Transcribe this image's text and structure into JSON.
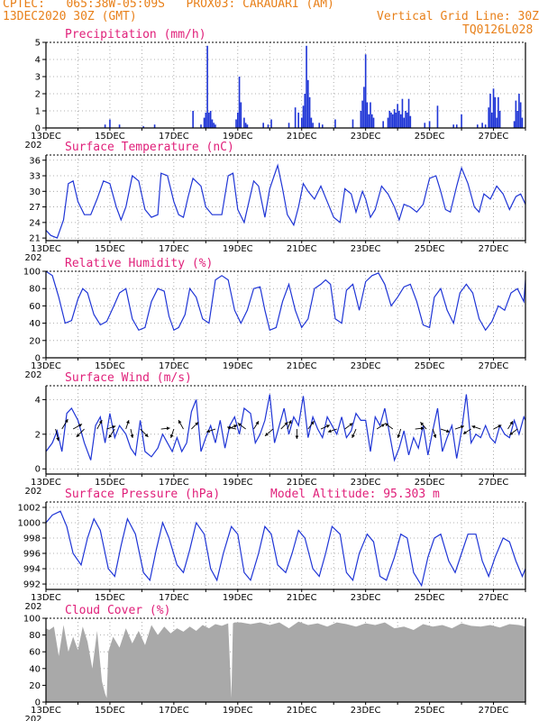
{
  "header": {
    "line1_left": "CPTEC:   065:38W-05:09S   PROX03: CARAUARI (AM)",
    "line2_left": "13DEC2020 30Z (GMT)",
    "line2_right": "Vertical Grid Line: 30Z",
    "line3_right": "TQ0126L028",
    "model_altitude": "Model Altitude: 95.303 m"
  },
  "colors": {
    "header": "#e8801a",
    "title": "#e0207a",
    "series": "#1f35d6",
    "cloud": "#a9a9a9",
    "grid": "#999999"
  },
  "x_axis": {
    "start_day": 13,
    "end_day": 28,
    "tick_labels": [
      "13DEC",
      "15DEC",
      "17DEC",
      "19DEC",
      "21DEC",
      "23DEC",
      "25DEC",
      "27DEC"
    ],
    "year_fragment": "202"
  },
  "chart_data": [
    {
      "type": "bar",
      "title": "Precipitation (mm/h)",
      "ylim": [
        0,
        5
      ],
      "yticks": [
        0,
        1,
        2,
        3,
        4,
        5
      ],
      "ytick_labels": [
        "0",
        "1",
        "2",
        "3",
        "4",
        "5"
      ],
      "x": [
        14.85,
        15.0,
        15.3,
        16.05,
        16.4,
        17.6,
        17.85,
        17.95,
        18.0,
        18.05,
        18.1,
        18.15,
        18.2,
        18.25,
        18.3,
        18.95,
        19.0,
        19.05,
        19.1,
        19.2,
        19.25,
        19.3,
        19.8,
        19.95,
        20.05,
        20.6,
        20.8,
        20.9,
        21.0,
        21.05,
        21.1,
        21.15,
        21.2,
        21.25,
        21.3,
        21.35,
        21.55,
        21.65,
        22.05,
        22.6,
        22.85,
        22.9,
        22.95,
        23.0,
        23.05,
        23.1,
        23.15,
        23.2,
        23.25,
        23.55,
        23.7,
        23.75,
        23.8,
        23.85,
        23.9,
        23.95,
        24.0,
        24.05,
        24.1,
        24.15,
        24.2,
        24.25,
        24.3,
        24.35,
        24.4,
        24.85,
        25.0,
        25.25,
        25.75,
        25.85,
        26.0,
        26.5,
        26.65,
        26.75,
        26.85,
        26.9,
        26.95,
        27.0,
        27.05,
        27.1,
        27.15,
        27.2,
        27.65,
        27.7,
        27.75,
        27.8,
        27.85,
        27.9
      ],
      "values": [
        0.2,
        0.5,
        0.2,
        0.1,
        0.2,
        1.0,
        0.2,
        0.6,
        0.9,
        4.8,
        0.9,
        1.0,
        0.5,
        0.3,
        0.2,
        0.5,
        0.9,
        3.0,
        1.5,
        0.6,
        0.3,
        0.2,
        0.3,
        0.2,
        0.5,
        0.3,
        1.2,
        0.9,
        0.6,
        1.3,
        2.0,
        4.8,
        2.8,
        1.8,
        0.6,
        0.3,
        0.3,
        0.2,
        0.5,
        0.5,
        1.0,
        1.6,
        2.4,
        4.3,
        1.5,
        0.8,
        1.5,
        0.8,
        0.6,
        0.4,
        0.6,
        1.0,
        0.9,
        0.8,
        1.1,
        0.9,
        1.4,
        1.0,
        0.8,
        1.7,
        0.6,
        1.0,
        0.9,
        1.7,
        0.7,
        0.3,
        0.4,
        1.3,
        0.2,
        0.2,
        0.8,
        0.2,
        0.3,
        0.2,
        1.2,
        2.0,
        0.9,
        2.3,
        1.8,
        0.6,
        1.8,
        1.0,
        0.4,
        1.6,
        1.0,
        2.0,
        1.5,
        0.6
      ]
    },
    {
      "type": "line",
      "title": "Surface Temperature (nC)",
      "ylim": [
        20.5,
        37.0
      ],
      "yticks": [
        21,
        24,
        27,
        30,
        33,
        36
      ],
      "ytick_labels": [
        "21",
        "24",
        "27",
        "30",
        "33",
        "36"
      ],
      "x": [
        13.0,
        13.15,
        13.35,
        13.55,
        13.7,
        13.85,
        14.0,
        14.2,
        14.4,
        14.6,
        14.8,
        15.0,
        15.2,
        15.35,
        15.5,
        15.7,
        15.9,
        16.1,
        16.3,
        16.5,
        16.6,
        16.8,
        17.0,
        17.15,
        17.3,
        17.45,
        17.6,
        17.85,
        18.0,
        18.2,
        18.5,
        18.7,
        18.85,
        19.0,
        19.2,
        19.35,
        19.5,
        19.65,
        19.85,
        20.0,
        20.25,
        20.4,
        20.55,
        20.75,
        20.9,
        21.05,
        21.2,
        21.4,
        21.6,
        21.8,
        22.0,
        22.2,
        22.35,
        22.55,
        22.7,
        22.9,
        23.0,
        23.15,
        23.3,
        23.5,
        23.7,
        23.9,
        24.05,
        24.2,
        24.4,
        24.6,
        24.8,
        25.0,
        25.2,
        25.35,
        25.5,
        25.65,
        25.85,
        26.0,
        26.2,
        26.4,
        26.55,
        26.7,
        26.9,
        27.1,
        27.3,
        27.5,
        27.7,
        27.85,
        28.0
      ],
      "values": [
        22.5,
        21.5,
        21.0,
        24.5,
        31.5,
        32.0,
        28.0,
        25.5,
        25.5,
        28.5,
        32.0,
        31.5,
        27.0,
        24.5,
        27.0,
        33.0,
        32.0,
        26.5,
        25.0,
        25.5,
        33.5,
        33.0,
        28.0,
        25.5,
        25.0,
        29.0,
        32.5,
        31.0,
        27.0,
        25.5,
        25.5,
        33.0,
        33.5,
        26.5,
        24.0,
        28.0,
        32.0,
        31.0,
        25.0,
        30.5,
        35.0,
        30.5,
        25.5,
        23.5,
        27.0,
        31.5,
        30.0,
        28.5,
        31.0,
        28.0,
        25.0,
        24.0,
        30.5,
        29.5,
        26.0,
        30.0,
        28.5,
        25.0,
        26.5,
        31.0,
        29.5,
        27.0,
        24.5,
        27.5,
        27.0,
        26.0,
        27.5,
        32.5,
        33.0,
        30.0,
        26.5,
        26.0,
        31.0,
        34.5,
        31.5,
        27.0,
        26.0,
        29.5,
        28.5,
        31.0,
        29.5,
        26.5,
        29.0,
        29.5,
        27.5
      ]
    },
    {
      "type": "line",
      "title": "Relative Humidity (%)",
      "ylim": [
        0,
        100
      ],
      "yticks": [
        0,
        20,
        40,
        60,
        80,
        100
      ],
      "ytick_labels": [
        "0",
        "20",
        "40",
        "60",
        "80",
        "100"
      ],
      "x": [
        13.0,
        13.2,
        13.4,
        13.6,
        13.8,
        14.0,
        14.15,
        14.3,
        14.5,
        14.7,
        14.9,
        15.1,
        15.3,
        15.5,
        15.7,
        15.9,
        16.1,
        16.3,
        16.5,
        16.7,
        16.85,
        17.0,
        17.15,
        17.35,
        17.5,
        17.7,
        17.9,
        18.1,
        18.3,
        18.5,
        18.7,
        18.9,
        19.1,
        19.3,
        19.5,
        19.7,
        19.85,
        20.0,
        20.2,
        20.4,
        20.6,
        20.8,
        21.0,
        21.2,
        21.4,
        21.6,
        21.75,
        21.9,
        22.05,
        22.25,
        22.4,
        22.6,
        22.8,
        23.0,
        23.2,
        23.4,
        23.6,
        23.8,
        24.0,
        24.2,
        24.4,
        24.6,
        24.8,
        25.0,
        25.15,
        25.35,
        25.55,
        25.75,
        25.95,
        26.15,
        26.35,
        26.55,
        26.75,
        26.95,
        27.15,
        27.35,
        27.55,
        27.75,
        27.95,
        28.0
      ],
      "values": [
        100,
        95,
        70,
        40,
        43,
        68,
        80,
        75,
        50,
        38,
        42,
        58,
        75,
        80,
        45,
        32,
        35,
        65,
        80,
        77,
        48,
        32,
        35,
        50,
        80,
        70,
        45,
        40,
        90,
        95,
        90,
        55,
        40,
        55,
        80,
        82,
        55,
        32,
        35,
        65,
        85,
        55,
        35,
        45,
        80,
        85,
        90,
        85,
        45,
        40,
        78,
        85,
        55,
        88,
        95,
        98,
        85,
        60,
        70,
        82,
        85,
        65,
        38,
        35,
        70,
        80,
        55,
        40,
        75,
        85,
        75,
        45,
        32,
        42,
        60,
        55,
        75,
        80,
        65,
        90
      ]
    },
    {
      "type": "line",
      "title": "Surface Wind (m/s)",
      "ylim": [
        -0.3,
        4.8
      ],
      "yticks": [
        0,
        2,
        4
      ],
      "ytick_labels": [
        "0",
        "2",
        "4"
      ],
      "x": [
        13.0,
        13.2,
        13.35,
        13.5,
        13.65,
        13.8,
        14.0,
        14.2,
        14.4,
        14.55,
        14.7,
        14.85,
        15.0,
        15.15,
        15.3,
        15.5,
        15.65,
        15.8,
        15.95,
        16.1,
        16.3,
        16.5,
        16.65,
        16.8,
        16.95,
        17.1,
        17.25,
        17.4,
        17.55,
        17.7,
        17.85,
        18.0,
        18.15,
        18.3,
        18.45,
        18.6,
        18.75,
        18.9,
        19.05,
        19.2,
        19.4,
        19.55,
        19.7,
        19.85,
        20.0,
        20.15,
        20.3,
        20.45,
        20.6,
        20.75,
        20.9,
        21.05,
        21.2,
        21.35,
        21.5,
        21.65,
        21.8,
        21.95,
        22.1,
        22.25,
        22.4,
        22.55,
        22.7,
        22.85,
        23.0,
        23.15,
        23.3,
        23.45,
        23.6,
        23.75,
        23.9,
        24.05,
        24.2,
        24.35,
        24.5,
        24.65,
        24.8,
        24.95,
        25.1,
        25.25,
        25.4,
        25.55,
        25.7,
        25.85,
        26.0,
        26.15,
        26.3,
        26.45,
        26.6,
        26.75,
        26.9,
        27.05,
        27.2,
        27.35,
        27.5,
        27.65,
        27.8,
        27.95,
        28.0
      ],
      "values": [
        1.0,
        1.5,
        2.2,
        1.0,
        3.2,
        3.5,
        2.8,
        1.5,
        0.5,
        2.5,
        3.0,
        1.5,
        3.2,
        1.8,
        2.5,
        2.0,
        1.2,
        0.8,
        2.8,
        1.0,
        0.7,
        1.2,
        2.0,
        1.5,
        1.0,
        1.8,
        1.0,
        1.5,
        3.3,
        4.0,
        1.0,
        1.8,
        2.5,
        1.5,
        2.8,
        1.2,
        2.5,
        3.0,
        2.0,
        3.5,
        3.2,
        1.5,
        2.0,
        2.8,
        4.3,
        1.5,
        2.5,
        3.5,
        2.0,
        3.0,
        2.5,
        4.2,
        1.8,
        3.0,
        2.3,
        1.8,
        3.0,
        2.5,
        2.0,
        3.0,
        1.8,
        2.2,
        3.2,
        2.8,
        2.8,
        1.0,
        3.0,
        2.5,
        3.5,
        2.0,
        0.5,
        1.2,
        2.2,
        0.8,
        1.8,
        1.2,
        2.5,
        0.8,
        2.2,
        3.5,
        1.0,
        1.8,
        2.5,
        0.6,
        2.2,
        4.3,
        1.5,
        2.0,
        1.8,
        2.5,
        1.8,
        1.5,
        2.5,
        2.0,
        1.8,
        2.8,
        2.0,
        3.0,
        2.8
      ]
    },
    {
      "type": "line",
      "title": "Surface Pressure (hPa)",
      "ylim": [
        991.3,
        1002.7
      ],
      "yticks": [
        992,
        994,
        996,
        998,
        1000,
        1002
      ],
      "ytick_labels": [
        "992",
        "994",
        "996",
        "998",
        "1000",
        "1002"
      ],
      "x": [
        13.0,
        13.2,
        13.45,
        13.65,
        13.85,
        14.1,
        14.3,
        14.5,
        14.7,
        14.95,
        15.15,
        15.35,
        15.55,
        15.8,
        16.05,
        16.25,
        16.45,
        16.65,
        16.85,
        17.1,
        17.3,
        17.5,
        17.7,
        17.95,
        18.15,
        18.35,
        18.55,
        18.8,
        19.0,
        19.2,
        19.4,
        19.65,
        19.85,
        20.05,
        20.25,
        20.5,
        20.7,
        20.9,
        21.1,
        21.35,
        21.55,
        21.75,
        21.95,
        22.2,
        22.4,
        22.6,
        22.8,
        23.05,
        23.25,
        23.45,
        23.65,
        23.9,
        24.1,
        24.3,
        24.5,
        24.75,
        24.95,
        25.15,
        25.35,
        25.6,
        25.8,
        26.0,
        26.2,
        26.45,
        26.65,
        26.85,
        27.05,
        27.3,
        27.5,
        27.7,
        27.9,
        28.0
      ],
      "values": [
        1000.0,
        1001.0,
        1001.5,
        999.5,
        996.0,
        994.5,
        998.0,
        1000.5,
        999.0,
        994.0,
        993.0,
        997.0,
        1000.5,
        998.5,
        993.5,
        992.5,
        996.5,
        1000.0,
        998.0,
        994.5,
        993.5,
        996.5,
        1000.0,
        998.5,
        994.0,
        992.5,
        996.0,
        999.5,
        998.5,
        993.5,
        992.5,
        996.0,
        999.5,
        998.5,
        994.5,
        993.5,
        996.0,
        999.0,
        998.0,
        994.0,
        993.0,
        996.0,
        999.5,
        998.5,
        993.5,
        992.5,
        996.0,
        998.5,
        997.5,
        993.0,
        992.5,
        995.5,
        998.5,
        998.0,
        993.5,
        991.8,
        995.5,
        998.0,
        998.5,
        995.0,
        993.5,
        996.0,
        998.5,
        998.5,
        995.0,
        993.0,
        995.5,
        998.0,
        997.5,
        995.0,
        993.0,
        994.0
      ]
    },
    {
      "type": "area",
      "title": "Cloud Cover (%)",
      "ylim": [
        0,
        100
      ],
      "yticks": [
        0,
        20,
        40,
        60,
        80,
        100
      ],
      "ytick_labels": [
        "0",
        "20",
        "40",
        "60",
        "80",
        "100"
      ],
      "x": [
        13.0,
        13.1,
        13.25,
        13.4,
        13.55,
        13.7,
        13.85,
        14.0,
        14.15,
        14.3,
        14.45,
        14.6,
        14.75,
        14.85,
        14.9,
        14.95,
        15.1,
        15.3,
        15.5,
        15.7,
        15.9,
        16.1,
        16.3,
        16.5,
        16.7,
        16.9,
        17.1,
        17.3,
        17.5,
        17.7,
        17.9,
        18.1,
        18.3,
        18.5,
        18.7,
        18.8,
        18.85,
        18.9,
        19.1,
        19.4,
        19.7,
        20.0,
        20.3,
        20.6,
        20.9,
        21.2,
        21.5,
        21.8,
        22.1,
        22.4,
        22.7,
        23.0,
        23.3,
        23.6,
        23.9,
        24.2,
        24.5,
        24.8,
        25.1,
        25.4,
        25.7,
        26.0,
        26.3,
        26.6,
        26.9,
        27.2,
        27.5,
        27.8,
        28.0
      ],
      "values": [
        88,
        86,
        90,
        55,
        92,
        60,
        78,
        62,
        90,
        72,
        40,
        85,
        25,
        10,
        5,
        60,
        78,
        65,
        88,
        70,
        85,
        68,
        92,
        80,
        90,
        82,
        88,
        84,
        90,
        85,
        92,
        88,
        93,
        91,
        94,
        5,
        94,
        95,
        95,
        93,
        95,
        92,
        95,
        88,
        96,
        92,
        94,
        90,
        95,
        93,
        90,
        94,
        92,
        95,
        88,
        90,
        86,
        93,
        90,
        92,
        88,
        94,
        91,
        90,
        92,
        89,
        93,
        92,
        90
      ]
    }
  ],
  "wind_arrows": [
    {
      "day": 13.3,
      "u": 0.3,
      "v": -1.2
    },
    {
      "day": 13.5,
      "u": 0.6,
      "v": 1.0
    },
    {
      "day": 13.85,
      "u": 0.9,
      "v": 0.5
    },
    {
      "day": 14.2,
      "u": -0.8,
      "v": -0.8
    },
    {
      "day": 14.6,
      "u": 0.5,
      "v": 0.9
    },
    {
      "day": 14.9,
      "u": 0.9,
      "v": 0.3
    },
    {
      "day": 15.15,
      "u": -0.6,
      "v": -0.9
    },
    {
      "day": 15.5,
      "u": 0.3,
      "v": 0.9
    },
    {
      "day": 15.65,
      "u": 0.2,
      "v": -0.9
    },
    {
      "day": 15.95,
      "u": 0.8,
      "v": -0.8
    },
    {
      "day": 16.6,
      "u": 0.9,
      "v": 0.1
    },
    {
      "day": 17.0,
      "u": -0.3,
      "v": -0.9
    },
    {
      "day": 17.3,
      "u": -0.5,
      "v": 0.9
    },
    {
      "day": 17.55,
      "u": 0.7,
      "v": 0.7
    },
    {
      "day": 18.3,
      "u": -0.9,
      "v": -0.3
    },
    {
      "day": 18.7,
      "u": 0.9,
      "v": 0.4
    },
    {
      "day": 18.95,
      "u": -0.9,
      "v": 0.2
    },
    {
      "day": 19.25,
      "u": -0.8,
      "v": 0.6
    },
    {
      "day": 19.5,
      "u": 0.5,
      "v": 0.8
    },
    {
      "day": 20.1,
      "u": -0.8,
      "v": -0.7
    },
    {
      "day": 20.35,
      "u": 0.7,
      "v": 0.7
    },
    {
      "day": 20.55,
      "u": 0.4,
      "v": 0.9
    },
    {
      "day": 20.85,
      "u": 0.0,
      "v": -1.0
    },
    {
      "day": 21.2,
      "u": 0.6,
      "v": 0.8
    },
    {
      "day": 21.6,
      "u": 0.9,
      "v": 0.4
    },
    {
      "day": 22.1,
      "u": -0.9,
      "v": -0.3
    },
    {
      "day": 22.35,
      "u": 0.8,
      "v": 0.6
    },
    {
      "day": 22.7,
      "u": -0.4,
      "v": -0.9
    },
    {
      "day": 23.35,
      "u": 0.8,
      "v": 0.5
    },
    {
      "day": 23.85,
      "u": -0.8,
      "v": 0.6
    },
    {
      "day": 24.1,
      "u": -0.3,
      "v": -0.9
    },
    {
      "day": 24.55,
      "u": 0.9,
      "v": 0.1
    },
    {
      "day": 24.9,
      "u": -0.6,
      "v": 0.7
    },
    {
      "day": 25.1,
      "u": 0.3,
      "v": -0.9
    },
    {
      "day": 25.35,
      "u": 0.9,
      "v": -0.3
    },
    {
      "day": 25.8,
      "u": 0.9,
      "v": 0.3
    },
    {
      "day": 26.3,
      "u": -0.8,
      "v": -0.5
    },
    {
      "day": 26.6,
      "u": -0.9,
      "v": 0.3
    },
    {
      "day": 27.0,
      "u": 0.8,
      "v": 0.4
    },
    {
      "day": 27.45,
      "u": 0.5,
      "v": 0.8
    },
    {
      "day": 27.75,
      "u": -0.8,
      "v": -0.6
    }
  ]
}
